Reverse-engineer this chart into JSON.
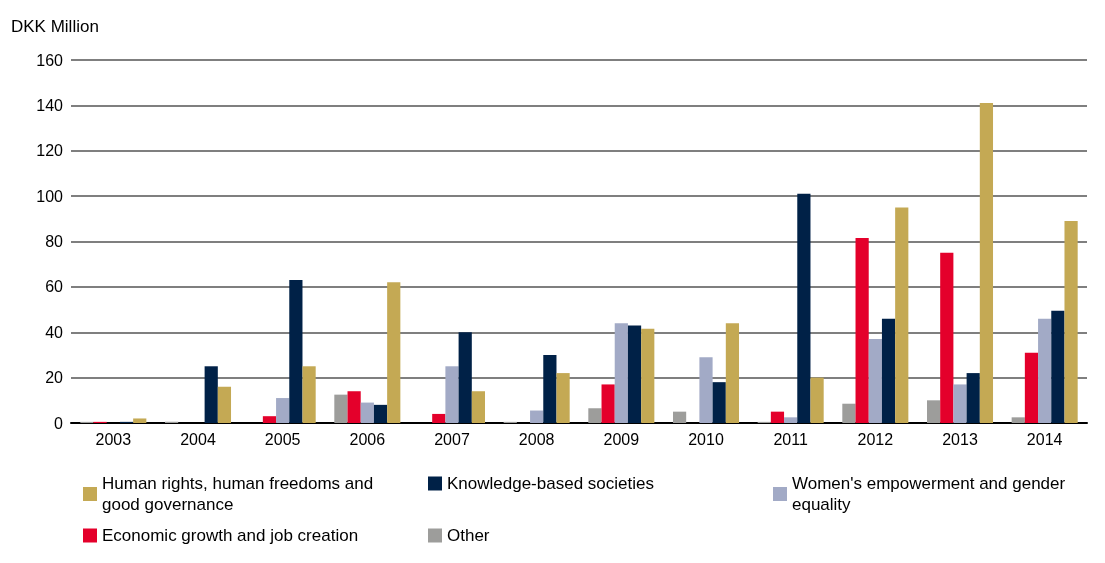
{
  "chart_data": {
    "type": "bar",
    "ylabel": "DKK Million",
    "categories": [
      "2003",
      "2004",
      "2005",
      "2006",
      "2007",
      "2008",
      "2009",
      "2010",
      "2011",
      "2012",
      "2013",
      "2014"
    ],
    "series": [
      {
        "name": "Human rights, human freedoms and good governance",
        "color": "#c4a954",
        "values": [
          2,
          16,
          25,
          62,
          14,
          22,
          41.5,
          44,
          20,
          95,
          141,
          89
        ]
      },
      {
        "name": "Knowledge-based societies",
        "color": "#002147",
        "values": [
          0.5,
          25,
          63,
          8,
          40,
          30,
          43,
          18,
          101,
          46,
          22,
          49.5
        ]
      },
      {
        "name": "Women's empowerment and gender equality",
        "color": "#a2aac6",
        "values": [
          0,
          0,
          11,
          9,
          25,
          5.5,
          44,
          29,
          2.5,
          37,
          17,
          46
        ]
      },
      {
        "name": "Economic growth and job creation",
        "color": "#e4002b",
        "values": [
          0.5,
          0,
          3,
          14,
          4,
          0,
          17,
          0,
          5,
          81.5,
          75,
          31
        ]
      },
      {
        "name": "Other",
        "color": "#9d9d9b",
        "values": [
          0.5,
          0.5,
          0,
          12.5,
          0,
          0.5,
          6.5,
          5,
          0.5,
          8.5,
          10,
          2.5
        ]
      }
    ],
    "ylim": [
      0,
      160
    ],
    "yticks": [
      0,
      20,
      40,
      60,
      80,
      100,
      120,
      140,
      160
    ],
    "grid": "y",
    "legend": "bottom left"
  }
}
